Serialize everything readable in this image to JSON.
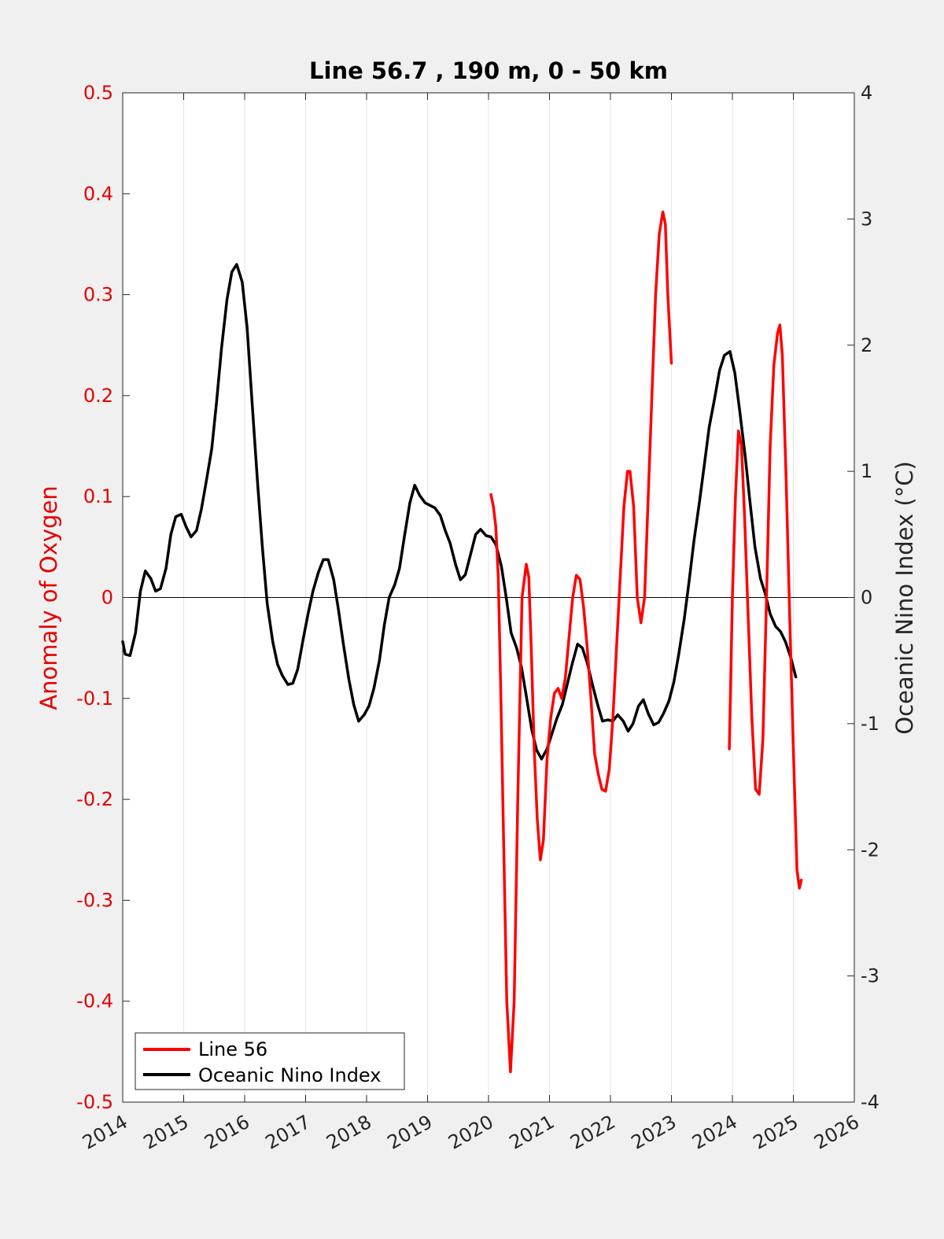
{
  "chart_data": {
    "type": "line",
    "title": "Line 56.7 , 190 m, 0 - 50 km",
    "xlabel": "",
    "ylabel_left": "Anomaly of Oxygen",
    "ylabel_right": "Oceanic Nino Index (°C)",
    "xlim": [
      2014,
      2026
    ],
    "ylim_left": [
      -0.5,
      0.5
    ],
    "ylim_right": [
      -4,
      4
    ],
    "x_ticks": [
      "2014",
      "2015",
      "2016",
      "2017",
      "2018",
      "2019",
      "2020",
      "2021",
      "2022",
      "2023",
      "2024",
      "2025",
      "2026"
    ],
    "y_ticks_left": [
      "-0.5",
      "-0.4",
      "-0.3",
      "-0.2",
      "-0.1",
      "0",
      "0.1",
      "0.2",
      "0.3",
      "0.4",
      "0.5"
    ],
    "y_ticks_right": [
      "-4",
      "-3",
      "-2",
      "-1",
      "0",
      "1",
      "2",
      "3",
      "4"
    ],
    "grid": "vertical",
    "legend_position": "bottom-left",
    "colors": {
      "line56": "#ff0000",
      "oni": "#000000",
      "left_axis": "#e60000"
    },
    "series": [
      {
        "name": "Line 56",
        "axis": "left",
        "color": "#ff0000",
        "segments": [
          [
            [
              2020.04,
              0.102
            ],
            [
              2020.08,
              0.09
            ],
            [
              2020.12,
              0.07
            ],
            [
              2020.16,
              0.02
            ],
            [
              2020.2,
              -0.09
            ],
            [
              2020.25,
              -0.25
            ],
            [
              2020.3,
              -0.4
            ],
            [
              2020.36,
              -0.47
            ],
            [
              2020.42,
              -0.4
            ],
            [
              2020.48,
              -0.2
            ],
            [
              2020.55,
              0.0
            ],
            [
              2020.62,
              0.033
            ],
            [
              2020.66,
              0.02
            ],
            [
              2020.7,
              -0.05
            ],
            [
              2020.75,
              -0.15
            ],
            [
              2020.8,
              -0.22
            ],
            [
              2020.85,
              -0.26
            ],
            [
              2020.9,
              -0.24
            ],
            [
              2020.96,
              -0.16
            ],
            [
              2021.02,
              -0.12
            ],
            [
              2021.08,
              -0.095
            ],
            [
              2021.14,
              -0.09
            ],
            [
              2021.2,
              -0.1
            ],
            [
              2021.26,
              -0.08
            ],
            [
              2021.32,
              -0.04
            ],
            [
              2021.38,
              0.0
            ],
            [
              2021.44,
              0.022
            ],
            [
              2021.5,
              0.018
            ],
            [
              2021.56,
              -0.01
            ],
            [
              2021.62,
              -0.05
            ],
            [
              2021.68,
              -0.1
            ],
            [
              2021.74,
              -0.155
            ],
            [
              2021.8,
              -0.175
            ],
            [
              2021.86,
              -0.19
            ],
            [
              2021.92,
              -0.192
            ],
            [
              2021.98,
              -0.17
            ],
            [
              2022.04,
              -0.12
            ],
            [
              2022.1,
              -0.05
            ],
            [
              2022.16,
              0.02
            ],
            [
              2022.22,
              0.09
            ],
            [
              2022.28,
              0.125
            ],
            [
              2022.32,
              0.125
            ],
            [
              2022.38,
              0.09
            ],
            [
              2022.44,
              0.0
            ],
            [
              2022.5,
              -0.025
            ],
            [
              2022.56,
              0.0
            ],
            [
              2022.62,
              0.1
            ],
            [
              2022.68,
              0.2
            ],
            [
              2022.74,
              0.3
            ],
            [
              2022.8,
              0.36
            ],
            [
              2022.86,
              0.382
            ],
            [
              2022.9,
              0.37
            ],
            [
              2022.94,
              0.3
            ],
            [
              2023.0,
              0.232
            ]
          ],
          [
            [
              2023.95,
              -0.15
            ],
            [
              2024.0,
              0.0
            ],
            [
              2024.05,
              0.1
            ],
            [
              2024.1,
              0.165
            ],
            [
              2024.15,
              0.15
            ],
            [
              2024.2,
              0.08
            ],
            [
              2024.26,
              -0.02
            ],
            [
              2024.32,
              -0.12
            ],
            [
              2024.38,
              -0.19
            ],
            [
              2024.44,
              -0.195
            ],
            [
              2024.5,
              -0.14
            ],
            [
              2024.56,
              0.0
            ],
            [
              2024.62,
              0.15
            ],
            [
              2024.68,
              0.23
            ],
            [
              2024.74,
              0.262
            ],
            [
              2024.78,
              0.27
            ],
            [
              2024.82,
              0.24
            ],
            [
              2024.88,
              0.12
            ],
            [
              2024.94,
              -0.02
            ],
            [
              2025.0,
              -0.15
            ],
            [
              2025.06,
              -0.27
            ],
            [
              2025.1,
              -0.288
            ],
            [
              2025.13,
              -0.28
            ]
          ]
        ]
      },
      {
        "name": "Oceanic Nino Index",
        "axis": "right",
        "color": "#000000",
        "segments": [
          [
            [
              2014.0,
              -0.35
            ],
            [
              2014.04,
              -0.45
            ],
            [
              2014.12,
              -0.46
            ],
            [
              2014.21,
              -0.28
            ],
            [
              2014.29,
              0.05
            ],
            [
              2014.37,
              0.21
            ],
            [
              2014.46,
              0.15
            ],
            [
              2014.54,
              0.05
            ],
            [
              2014.62,
              0.07
            ],
            [
              2014.71,
              0.23
            ],
            [
              2014.79,
              0.5
            ],
            [
              2014.87,
              0.64
            ],
            [
              2014.96,
              0.66
            ],
            [
              2015.04,
              0.56
            ],
            [
              2015.12,
              0.48
            ],
            [
              2015.21,
              0.53
            ],
            [
              2015.29,
              0.7
            ],
            [
              2015.37,
              0.92
            ],
            [
              2015.46,
              1.18
            ],
            [
              2015.54,
              1.55
            ],
            [
              2015.62,
              1.97
            ],
            [
              2015.71,
              2.36
            ],
            [
              2015.79,
              2.58
            ],
            [
              2015.87,
              2.64
            ],
            [
              2015.96,
              2.5
            ],
            [
              2016.04,
              2.14
            ],
            [
              2016.12,
              1.56
            ],
            [
              2016.21,
              0.92
            ],
            [
              2016.29,
              0.4
            ],
            [
              2016.37,
              -0.05
            ],
            [
              2016.46,
              -0.35
            ],
            [
              2016.54,
              -0.53
            ],
            [
              2016.62,
              -0.62
            ],
            [
              2016.71,
              -0.69
            ],
            [
              2016.79,
              -0.68
            ],
            [
              2016.87,
              -0.57
            ],
            [
              2016.96,
              -0.33
            ],
            [
              2017.04,
              -0.13
            ],
            [
              2017.12,
              0.05
            ],
            [
              2017.21,
              0.2
            ],
            [
              2017.29,
              0.3
            ],
            [
              2017.37,
              0.3
            ],
            [
              2017.46,
              0.14
            ],
            [
              2017.54,
              -0.1
            ],
            [
              2017.62,
              -0.37
            ],
            [
              2017.71,
              -0.65
            ],
            [
              2017.79,
              -0.85
            ],
            [
              2017.87,
              -0.98
            ],
            [
              2017.96,
              -0.93
            ],
            [
              2018.04,
              -0.86
            ],
            [
              2018.12,
              -0.72
            ],
            [
              2018.21,
              -0.5
            ],
            [
              2018.29,
              -0.22
            ],
            [
              2018.37,
              0.0
            ],
            [
              2018.46,
              0.1
            ],
            [
              2018.54,
              0.23
            ],
            [
              2018.62,
              0.48
            ],
            [
              2018.71,
              0.75
            ],
            [
              2018.79,
              0.89
            ],
            [
              2018.87,
              0.81
            ],
            [
              2018.96,
              0.75
            ],
            [
              2019.04,
              0.73
            ],
            [
              2019.12,
              0.71
            ],
            [
              2019.21,
              0.65
            ],
            [
              2019.29,
              0.53
            ],
            [
              2019.37,
              0.43
            ],
            [
              2019.46,
              0.26
            ],
            [
              2019.54,
              0.14
            ],
            [
              2019.62,
              0.18
            ],
            [
              2019.71,
              0.35
            ],
            [
              2019.79,
              0.5
            ],
            [
              2019.87,
              0.54
            ],
            [
              2019.96,
              0.49
            ],
            [
              2020.04,
              0.48
            ],
            [
              2020.12,
              0.42
            ],
            [
              2020.21,
              0.25
            ],
            [
              2020.29,
              0.0
            ],
            [
              2020.37,
              -0.28
            ],
            [
              2020.46,
              -0.4
            ],
            [
              2020.54,
              -0.55
            ],
            [
              2020.62,
              -0.78
            ],
            [
              2020.71,
              -1.05
            ],
            [
              2020.79,
              -1.21
            ],
            [
              2020.87,
              -1.28
            ],
            [
              2020.96,
              -1.2
            ],
            [
              2021.04,
              -1.08
            ],
            [
              2021.12,
              -0.96
            ],
            [
              2021.21,
              -0.85
            ],
            [
              2021.29,
              -0.69
            ],
            [
              2021.37,
              -0.53
            ],
            [
              2021.46,
              -0.37
            ],
            [
              2021.54,
              -0.4
            ],
            [
              2021.62,
              -0.52
            ],
            [
              2021.71,
              -0.7
            ],
            [
              2021.79,
              -0.85
            ],
            [
              2021.87,
              -0.98
            ],
            [
              2021.96,
              -0.97
            ],
            [
              2022.04,
              -0.98
            ],
            [
              2022.12,
              -0.93
            ],
            [
              2022.21,
              -0.98
            ],
            [
              2022.29,
              -1.06
            ],
            [
              2022.37,
              -1.0
            ],
            [
              2022.46,
              -0.86
            ],
            [
              2022.54,
              -0.81
            ],
            [
              2022.62,
              -0.92
            ],
            [
              2022.71,
              -1.01
            ],
            [
              2022.79,
              -0.99
            ],
            [
              2022.87,
              -0.92
            ],
            [
              2022.96,
              -0.82
            ],
            [
              2023.04,
              -0.67
            ],
            [
              2023.12,
              -0.45
            ],
            [
              2023.21,
              -0.17
            ],
            [
              2023.29,
              0.13
            ],
            [
              2023.37,
              0.45
            ],
            [
              2023.46,
              0.76
            ],
            [
              2023.54,
              1.05
            ],
            [
              2023.62,
              1.35
            ],
            [
              2023.71,
              1.58
            ],
            [
              2023.79,
              1.8
            ],
            [
              2023.87,
              1.92
            ],
            [
              2023.96,
              1.95
            ],
            [
              2024.04,
              1.78
            ],
            [
              2024.12,
              1.48
            ],
            [
              2024.21,
              1.12
            ],
            [
              2024.29,
              0.75
            ],
            [
              2024.37,
              0.4
            ],
            [
              2024.46,
              0.15
            ],
            [
              2024.54,
              0.03
            ],
            [
              2024.62,
              -0.13
            ],
            [
              2024.71,
              -0.23
            ],
            [
              2024.79,
              -0.27
            ],
            [
              2024.87,
              -0.35
            ],
            [
              2024.96,
              -0.48
            ],
            [
              2025.04,
              -0.63
            ]
          ]
        ]
      }
    ]
  }
}
